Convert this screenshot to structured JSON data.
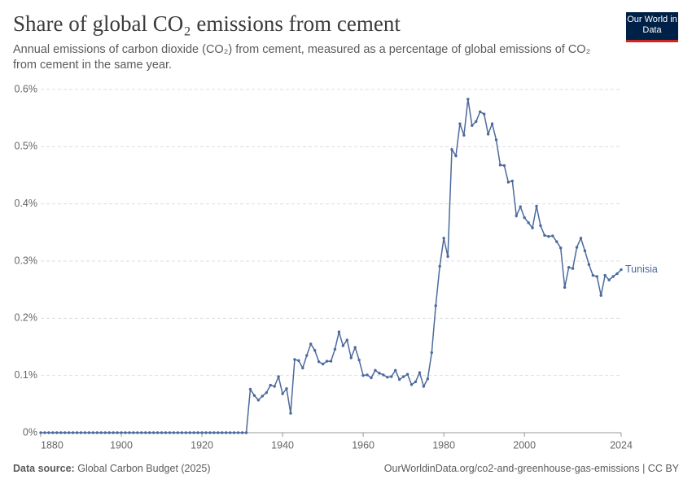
{
  "logo": "Our World in Data",
  "chart_data": {
    "type": "line",
    "title": "Share of global CO₂ emissions from cement",
    "subtitle": "Annual emissions of carbon dioxide (CO₂) from cement, measured as a percentage of global emissions of CO₂ from cement in the same year.",
    "source_label": "Data source:",
    "source": "Global Carbon Budget (2025)",
    "credit": "OurWorldinData.org/co2-and-greenhouse-gas-emissions | CC BY",
    "x": [
      1880,
      1881,
      1882,
      1883,
      1884,
      1885,
      1886,
      1887,
      1888,
      1889,
      1890,
      1891,
      1892,
      1893,
      1894,
      1895,
      1896,
      1897,
      1898,
      1899,
      1900,
      1901,
      1902,
      1903,
      1904,
      1905,
      1906,
      1907,
      1908,
      1909,
      1910,
      1911,
      1912,
      1913,
      1914,
      1915,
      1916,
      1917,
      1918,
      1919,
      1920,
      1921,
      1922,
      1923,
      1924,
      1925,
      1926,
      1927,
      1928,
      1929,
      1930,
      1931,
      1932,
      1933,
      1934,
      1935,
      1936,
      1937,
      1938,
      1939,
      1940,
      1941,
      1942,
      1943,
      1944,
      1945,
      1946,
      1947,
      1948,
      1949,
      1950,
      1951,
      1952,
      1953,
      1954,
      1955,
      1956,
      1957,
      1958,
      1959,
      1960,
      1961,
      1962,
      1963,
      1964,
      1965,
      1966,
      1967,
      1968,
      1969,
      1970,
      1971,
      1972,
      1973,
      1974,
      1975,
      1976,
      1977,
      1978,
      1979,
      1980,
      1981,
      1982,
      1983,
      1984,
      1985,
      1986,
      1987,
      1988,
      1989,
      1990,
      1991,
      1992,
      1993,
      1994,
      1995,
      1996,
      1997,
      1998,
      1999,
      2000,
      2001,
      2002,
      2003,
      2004,
      2005,
      2006,
      2007,
      2008,
      2009,
      2010,
      2011,
      2012,
      2013,
      2014,
      2015,
      2016,
      2017,
      2018,
      2019,
      2020,
      2021,
      2022,
      2023,
      2024
    ],
    "series": [
      {
        "name": "Tunisia",
        "color": "#4c6a9c",
        "values": [
          0,
          0,
          0,
          0,
          0,
          0,
          0,
          0,
          0,
          0,
          0,
          0,
          0,
          0,
          0,
          0,
          0,
          0,
          0,
          0,
          0,
          0,
          0,
          0,
          0,
          0,
          0,
          0,
          0,
          0,
          0,
          0,
          0,
          0,
          0,
          0,
          0,
          0,
          0,
          0,
          0,
          0,
          0,
          0,
          0,
          0,
          0,
          0,
          0,
          0,
          0,
          0,
          0.076,
          0.065,
          0.057,
          0.064,
          0.07,
          0.083,
          0.081,
          0.098,
          0.068,
          0.077,
          0.034,
          0.128,
          0.126,
          0.113,
          0.135,
          0.155,
          0.144,
          0.124,
          0.12,
          0.125,
          0.125,
          0.146,
          0.176,
          0.152,
          0.162,
          0.131,
          0.149,
          0.127,
          0.1,
          0.101,
          0.096,
          0.109,
          0.104,
          0.101,
          0.097,
          0.098,
          0.109,
          0.093,
          0.098,
          0.102,
          0.084,
          0.089,
          0.105,
          0.081,
          0.094,
          0.14,
          0.222,
          0.291,
          0.34,
          0.308,
          0.495,
          0.484,
          0.54,
          0.52,
          0.583,
          0.537,
          0.544,
          0.561,
          0.557,
          0.522,
          0.54,
          0.512,
          0.468,
          0.467,
          0.438,
          0.44,
          0.379,
          0.395,
          0.376,
          0.367,
          0.358,
          0.396,
          0.362,
          0.345,
          0.343,
          0.344,
          0.334,
          0.323,
          0.254,
          0.289,
          0.287,
          0.324,
          0.34,
          0.318,
          0.294,
          0.275,
          0.273,
          0.24,
          0.275,
          0.267,
          0.273,
          0.278,
          0.285
        ]
      }
    ],
    "xlim": [
      1880,
      2024
    ],
    "xticks": [
      1880,
      1900,
      1920,
      1940,
      1960,
      1980,
      2000,
      2024
    ],
    "ylim": [
      0,
      0.6
    ],
    "yticks": [
      {
        "value": 0,
        "label": "0%"
      },
      {
        "value": 0.1,
        "label": "0.1%"
      },
      {
        "value": 0.2,
        "label": "0.2%"
      },
      {
        "value": 0.3,
        "label": "0.3%"
      },
      {
        "value": 0.4,
        "label": "0.4%"
      },
      {
        "value": 0.5,
        "label": "0.5%"
      },
      {
        "value": 0.6,
        "label": "0.6%"
      }
    ],
    "grid": true
  }
}
